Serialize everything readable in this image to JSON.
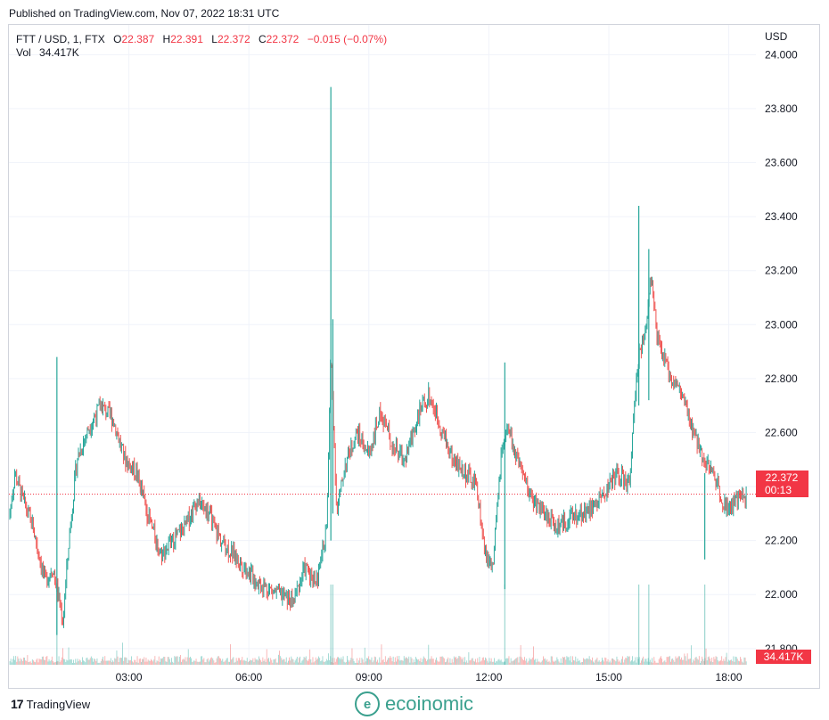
{
  "header": {
    "published": "Published on TradingView.com, Nov 07, 2022 18:31 UTC"
  },
  "legend": {
    "symbol": "FTT / USD, 1, FTX",
    "o_label": "O",
    "o_value": "22.387",
    "h_label": "H",
    "h_value": "22.391",
    "l_label": "L",
    "l_value": "22.372",
    "c_label": "C",
    "c_value": "22.372",
    "change": "−0.015 (−0.07%)",
    "vol_label": "Vol",
    "vol_value": "34.417K"
  },
  "axis": {
    "currency": "USD"
  },
  "badges": {
    "price": "22.372",
    "countdown": "00:13",
    "volume": "34.417K"
  },
  "footer": {
    "tradingview": "TradingView",
    "watermark": "ecoinomic"
  },
  "colors": {
    "up": "#26a69a",
    "down": "#ef5350",
    "badge": "#f23645",
    "grid": "#f0f3fa"
  },
  "chart_data": {
    "type": "candlestick",
    "ylim": [
      21.74,
      24.11
    ],
    "y_ticks": [
      "24.000",
      "23.800",
      "23.600",
      "23.400",
      "23.200",
      "23.000",
      "22.800",
      "22.600",
      "22.400",
      "22.200",
      "22.000",
      "21.800"
    ],
    "x_ticks": [
      "03:00",
      "06:00",
      "09:00",
      "12:00",
      "15:00",
      "18:00"
    ],
    "x_tick_hours": [
      3,
      6,
      9,
      12,
      15,
      18
    ],
    "x_range_hours": [
      0,
      18.5
    ],
    "last_price": 22.372,
    "path_hours": [
      0,
      0.15,
      0.35,
      0.6,
      0.9,
      1.1,
      1.35,
      1.5,
      1.7,
      2.0,
      2.3,
      2.6,
      2.9,
      3.2,
      3.5,
      3.8,
      4.1,
      4.4,
      4.7,
      5.0,
      5.3,
      5.6,
      5.9,
      6.2,
      6.5,
      6.8,
      7.1,
      7.4,
      7.7,
      7.95,
      8.05,
      8.2,
      8.4,
      8.7,
      9.0,
      9.3,
      9.6,
      9.9,
      10.2,
      10.5,
      10.8,
      11.1,
      11.4,
      11.7,
      11.9,
      12.1,
      12.3,
      12.5,
      12.6,
      12.8,
      13.1,
      13.4,
      13.7,
      14.0,
      14.3,
      14.6,
      14.9,
      15.2,
      15.5,
      15.75,
      15.9,
      16.05,
      16.2,
      16.5,
      16.8,
      17.1,
      17.4,
      17.7,
      17.85,
      18.0,
      18.3,
      18.5
    ],
    "path_prices": [
      22.28,
      22.45,
      22.35,
      22.25,
      22.05,
      22.1,
      21.9,
      22.2,
      22.5,
      22.62,
      22.7,
      22.65,
      22.5,
      22.45,
      22.28,
      22.15,
      22.2,
      22.25,
      22.35,
      22.3,
      22.2,
      22.15,
      22.1,
      22.05,
      22.02,
      22.0,
      21.97,
      22.1,
      22.05,
      22.25,
      22.9,
      22.3,
      22.48,
      22.6,
      22.52,
      22.68,
      22.55,
      22.5,
      22.65,
      22.74,
      22.62,
      22.5,
      22.45,
      22.4,
      22.15,
      22.1,
      22.5,
      22.62,
      22.55,
      22.45,
      22.35,
      22.3,
      22.25,
      22.28,
      22.3,
      22.32,
      22.38,
      22.45,
      22.4,
      22.9,
      22.95,
      23.2,
      22.95,
      22.82,
      22.75,
      22.6,
      22.5,
      22.42,
      22.35,
      22.32,
      22.36,
      22.37
    ],
    "spikes": [
      {
        "hour": 1.2,
        "high": 22.88,
        "low": 21.85
      },
      {
        "hour": 8.05,
        "high": 23.88,
        "low": 22.2
      },
      {
        "hour": 8.1,
        "high": 23.02,
        "low": 22.3
      },
      {
        "hour": 12.4,
        "high": 22.86,
        "low": 22.02
      },
      {
        "hour": 15.75,
        "high": 23.44,
        "low": 22.7
      },
      {
        "hour": 16.0,
        "high": 23.28,
        "low": 22.72
      },
      {
        "hour": 17.4,
        "high": 22.45,
        "low": 22.13
      }
    ]
  }
}
